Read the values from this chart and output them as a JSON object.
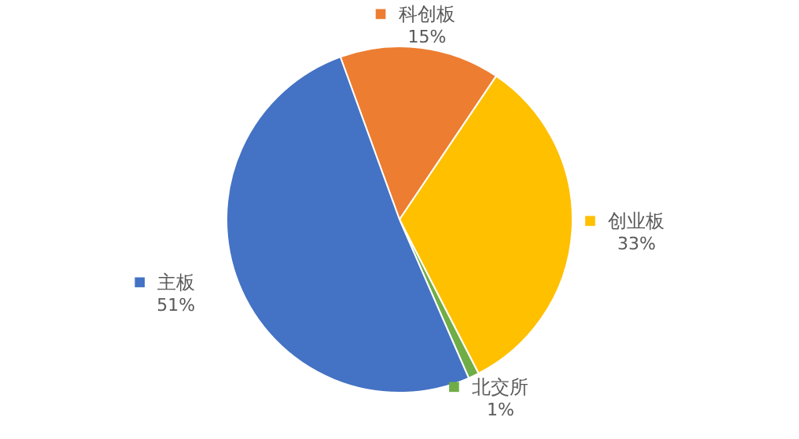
{
  "chart_data": {
    "type": "pie",
    "categories": [
      "科创板",
      "创业板",
      "北交所",
      "主板"
    ],
    "values": [
      15,
      33,
      1,
      51
    ],
    "colors": [
      "#ed7d31",
      "#ffc000",
      "#70ad47",
      "#4472c4"
    ],
    "value_labels": [
      "15%",
      "33%",
      "1%",
      "51%"
    ],
    "legend": "right"
  }
}
